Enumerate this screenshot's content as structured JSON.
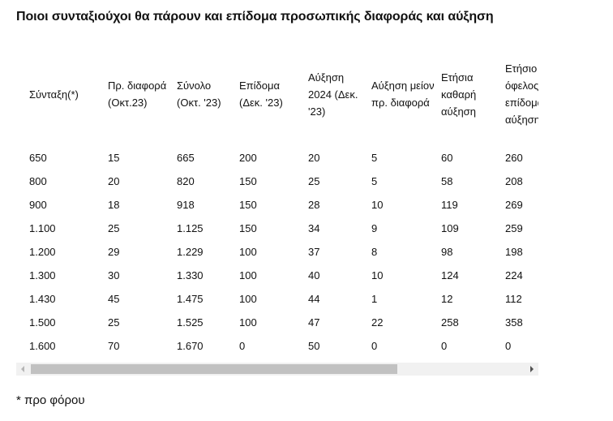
{
  "title": "Ποιοι συνταξιούχοι θα πάρουν και επίδομα προσωπικής διαφοράς και αύξηση",
  "table": {
    "headers": [
      "Σύνταξη(*)",
      "Πρ. διαφορά (Οκτ.23)",
      "Σύνολο (Οκτ. '23)",
      "Επίδομα (Δεκ. '23)",
      "Αύξηση 2024 (Δεκ. '23)",
      "Αύξηση μείον πρ. διαφορά",
      "Ετήσια καθαρή αύξηση",
      "Ετήσιο όφελος με επίδομα και αύξηση"
    ],
    "rows": [
      [
        "650",
        "15",
        "665",
        "200",
        "20",
        "5",
        "60",
        "260"
      ],
      [
        "800",
        "20",
        "820",
        "150",
        "25",
        "5",
        "58",
        "208"
      ],
      [
        "900",
        "18",
        "918",
        "150",
        "28",
        "10",
        "119",
        "269"
      ],
      [
        "1.100",
        "25",
        "1.125",
        "150",
        "34",
        "9",
        "109",
        "259"
      ],
      [
        "1.200",
        "29",
        "1.229",
        "100",
        "37",
        "8",
        "98",
        "198"
      ],
      [
        "1.300",
        "30",
        "1.330",
        "100",
        "40",
        "10",
        "124",
        "224"
      ],
      [
        "1.430",
        "45",
        "1.475",
        "100",
        "44",
        "1",
        "12",
        "112"
      ],
      [
        "1.500",
        "25",
        "1.525",
        "100",
        "47",
        "22",
        "258",
        "358"
      ],
      [
        "1.600",
        "70",
        "1.670",
        "0",
        "50",
        "0",
        "0",
        "0"
      ]
    ]
  },
  "footnote": "* προ φόρου"
}
